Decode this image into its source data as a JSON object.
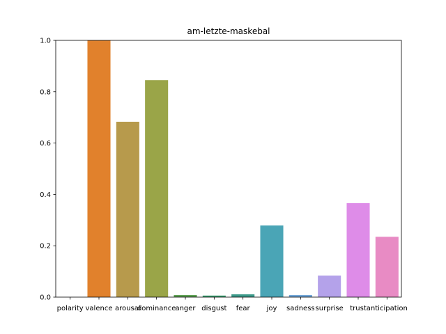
{
  "chart_data": {
    "type": "bar",
    "title": "am-letzte-maskebal",
    "xlabel": "",
    "ylabel": "",
    "ylim": [
      0,
      1.0
    ],
    "grid": false,
    "yticks": [
      "0.0",
      "0.2",
      "0.4",
      "0.6",
      "0.8",
      "1.0"
    ],
    "categories": [
      "polarity",
      "valence",
      "arousal",
      "dominance",
      "anger",
      "disgust",
      "fear",
      "joy",
      "sadness",
      "surprise",
      "trust",
      "anticipation"
    ],
    "values": [
      0.0,
      1.0,
      0.683,
      0.845,
      0.008,
      0.006,
      0.011,
      0.279,
      0.008,
      0.084,
      0.366,
      0.235
    ],
    "colors": [
      "#3274a1",
      "#e1812c",
      "#b79a4c",
      "#9aa548",
      "#5a9e4f",
      "#3a9c6e",
      "#3d9a8a",
      "#4aa5b6",
      "#6ea4d6",
      "#b4a2ea",
      "#de8ce8",
      "#e88bc4"
    ]
  }
}
